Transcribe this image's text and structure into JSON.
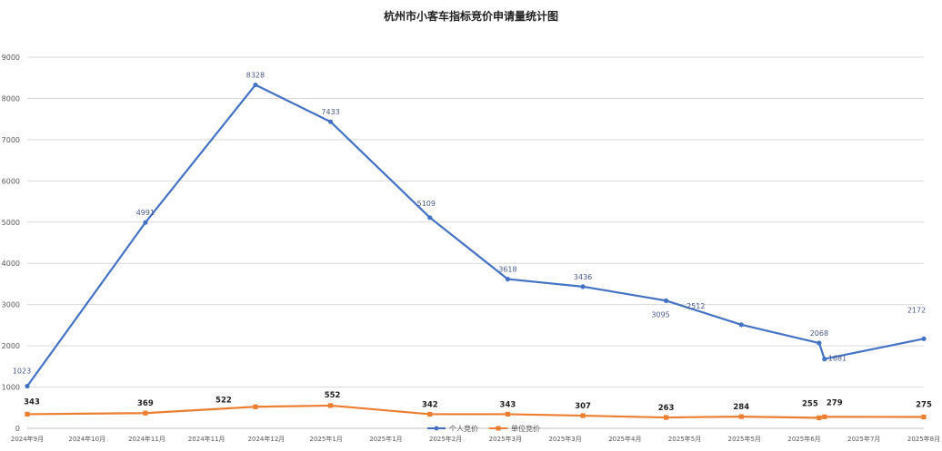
{
  "chart_data": {
    "type": "line",
    "title": "杭州市小客车指标竞价申请量统计图",
    "xlabel": "",
    "ylabel": "",
    "ylim": [
      0,
      9000
    ],
    "y_ticks": [
      0,
      1000,
      2000,
      3000,
      4000,
      5000,
      6000,
      7000,
      8000,
      9000
    ],
    "x_tick_labels": [
      "2024年9月",
      "2024年10月",
      "2024年11月",
      "2024年11月",
      "2024年12月",
      "2025年1月",
      "2025年1月",
      "2025年2月",
      "2025年3月",
      "2025年3月",
      "2025年4月",
      "2025年5月",
      "2025年5月",
      "2025年6月",
      "2025年7月",
      "2025年8月"
    ],
    "grid": "horizontal",
    "legend_position": "bottom",
    "series": [
      {
        "name": "个人竞价",
        "color": "#4472c4",
        "marker": "circle",
        "x": [
          "2024-09-01",
          "2024-10-15",
          "2024-11-25",
          "2024-12-23",
          "2025-01-29",
          "2025-02-27",
          "2025-03-27",
          "2025-04-27",
          "2025-05-25",
          "2025-06-23",
          "2025-06-25",
          "2025-08-01"
        ],
        "values": [
          1023,
          4991,
          8328,
          7433,
          5109,
          3618,
          3436,
          3095,
          2512,
          2068,
          1681,
          2172
        ]
      },
      {
        "name": "单位竞价",
        "color": "#ed7d31",
        "marker": "square",
        "x": [
          "2024-09-01",
          "2024-10-15",
          "2024-11-25",
          "2024-12-23",
          "2025-01-29",
          "2025-02-27",
          "2025-03-27",
          "2025-04-27",
          "2025-05-25",
          "2025-06-23",
          "2025-06-25",
          "2025-08-01"
        ],
        "values": [
          343,
          369,
          522,
          552,
          342,
          343,
          307,
          263,
          284,
          255,
          279,
          275
        ]
      }
    ]
  }
}
